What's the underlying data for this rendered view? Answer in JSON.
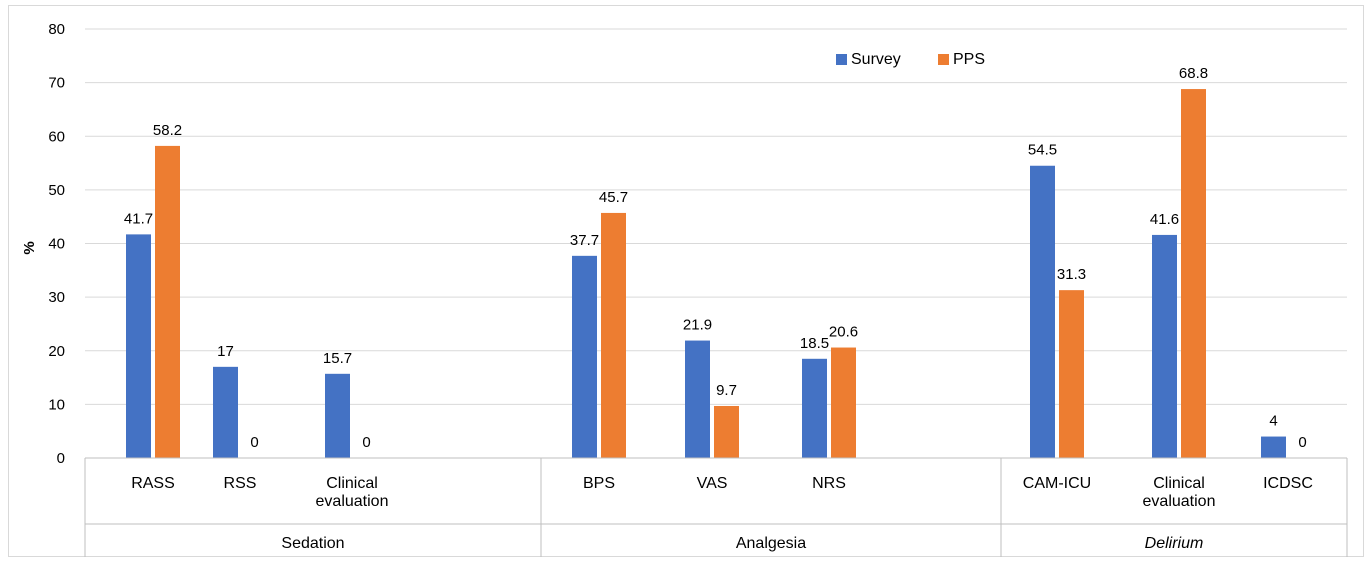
{
  "chart_data": {
    "type": "bar",
    "ylabel": "%",
    "ylim": [
      0,
      80
    ],
    "yticks": [
      0,
      10,
      20,
      30,
      40,
      50,
      60,
      70,
      80
    ],
    "grid": true,
    "legend_position": "top-right",
    "groups": [
      {
        "name": "Sedation",
        "italic": false,
        "categories": [
          "RASS",
          "RSS",
          "Clinical\nevaluation"
        ]
      },
      {
        "name": "Analgesia",
        "italic": false,
        "categories": [
          "BPS",
          "VAS",
          "NRS"
        ]
      },
      {
        "name": "Delirium",
        "italic": true,
        "categories": [
          "CAM-ICU",
          "Clinical\nevaluation",
          "ICDSC"
        ]
      }
    ],
    "series": [
      {
        "name": "Survey",
        "color": "#4472C4",
        "values": [
          41.7,
          17,
          15.7,
          37.7,
          21.9,
          18.5,
          54.5,
          41.6,
          4
        ]
      },
      {
        "name": "PPS",
        "color": "#ED7D31",
        "values": [
          58.2,
          0,
          0,
          45.7,
          9.7,
          20.6,
          31.3,
          68.8,
          0
        ]
      }
    ]
  }
}
